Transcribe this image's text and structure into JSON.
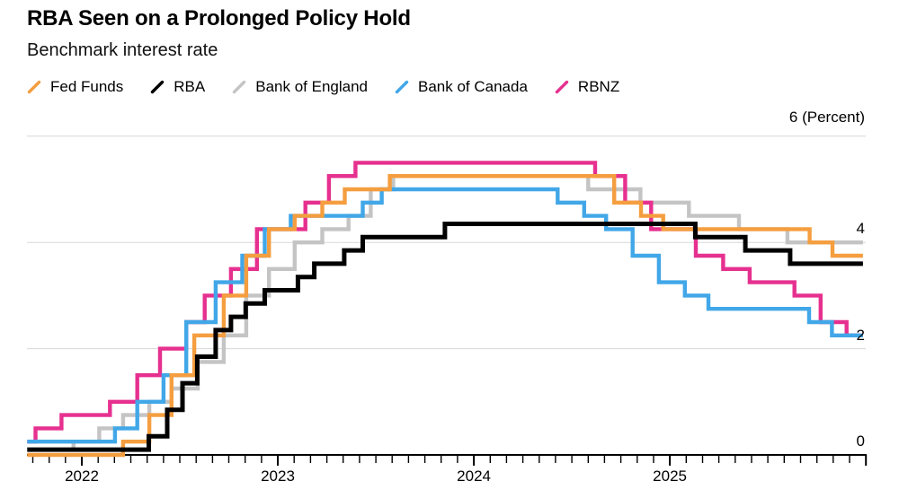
{
  "chart_data": {
    "type": "step-line",
    "title": "RBA Seen on a Prolonged Policy Hold",
    "subtitle": "Benchmark interest rate",
    "unit_top_label": "6 (Percent)",
    "background": "#ffffff",
    "gridline_color": "#d7d7d7",
    "axis_color": "#000000",
    "legend_position": "top",
    "yaxis": {
      "unit": "Percent",
      "ylim": [
        0,
        6
      ],
      "gridlines": [
        2,
        4,
        6
      ],
      "tick_labels": [
        "4",
        "2",
        "0"
      ]
    },
    "xaxis": {
      "start_date": "2021-09-21",
      "end_date": "2025-12-26",
      "tick_interval": "month",
      "years": [
        "2022",
        "2023",
        "2024",
        "2025"
      ]
    },
    "series": [
      {
        "id": "fed-funds",
        "name": "Fed Funds",
        "color": "#F59E3F",
        "z": 3,
        "line_width": 4.4,
        "points": [
          [
            "2021-09-21",
            0.0
          ],
          [
            "2022-03-17",
            0.25
          ],
          [
            "2022-05-05",
            0.75
          ],
          [
            "2022-06-16",
            1.5
          ],
          [
            "2022-07-28",
            2.25
          ],
          [
            "2022-09-22",
            3.0
          ],
          [
            "2022-11-03",
            3.75
          ],
          [
            "2022-12-15",
            4.25
          ],
          [
            "2023-02-02",
            4.5
          ],
          [
            "2023-03-23",
            4.75
          ],
          [
            "2023-05-04",
            5.0
          ],
          [
            "2023-07-27",
            5.25
          ],
          [
            "2024-09-19",
            4.75
          ],
          [
            "2024-11-08",
            4.5
          ],
          [
            "2024-12-19",
            4.25
          ],
          [
            "2025-09-18",
            4.0
          ],
          [
            "2025-10-30",
            3.75
          ]
        ]
      },
      {
        "id": "rba",
        "name": "RBA",
        "color": "#000000",
        "z": 4,
        "line_width": 5,
        "points": [
          [
            "2021-09-21",
            0.1
          ],
          [
            "2022-05-04",
            0.35
          ],
          [
            "2022-06-08",
            0.85
          ],
          [
            "2022-07-06",
            1.35
          ],
          [
            "2022-08-03",
            1.85
          ],
          [
            "2022-09-07",
            2.35
          ],
          [
            "2022-10-05",
            2.6
          ],
          [
            "2022-11-02",
            2.85
          ],
          [
            "2022-12-07",
            3.1
          ],
          [
            "2023-02-08",
            3.35
          ],
          [
            "2023-03-08",
            3.6
          ],
          [
            "2023-05-03",
            3.85
          ],
          [
            "2023-06-07",
            4.1
          ],
          [
            "2023-11-08",
            4.35
          ],
          [
            "2025-02-18",
            4.1
          ],
          [
            "2025-05-20",
            3.85
          ],
          [
            "2025-08-12",
            3.6
          ]
        ]
      },
      {
        "id": "bank-of-england",
        "name": "Bank of England",
        "color": "#C4C4C4",
        "z": 0,
        "line_width": 4.4,
        "points": [
          [
            "2021-09-21",
            0.1
          ],
          [
            "2021-12-16",
            0.25
          ],
          [
            "2022-02-03",
            0.5
          ],
          [
            "2022-03-17",
            0.75
          ],
          [
            "2022-05-05",
            1.0
          ],
          [
            "2022-06-16",
            1.25
          ],
          [
            "2022-08-04",
            1.75
          ],
          [
            "2022-09-22",
            2.25
          ],
          [
            "2022-11-03",
            3.0
          ],
          [
            "2022-12-15",
            3.5
          ],
          [
            "2023-02-02",
            4.0
          ],
          [
            "2023-03-23",
            4.25
          ],
          [
            "2023-05-11",
            4.5
          ],
          [
            "2023-06-22",
            5.0
          ],
          [
            "2023-08-03",
            5.25
          ],
          [
            "2024-08-01",
            5.0
          ],
          [
            "2024-11-07",
            4.75
          ],
          [
            "2025-02-06",
            4.5
          ],
          [
            "2025-05-08",
            4.25
          ],
          [
            "2025-08-07",
            4.0
          ]
        ]
      },
      {
        "id": "bank-of-canada",
        "name": "Bank of Canada",
        "color": "#41A7E8",
        "z": 2,
        "line_width": 4.4,
        "points": [
          [
            "2021-09-21",
            0.25
          ],
          [
            "2022-03-02",
            0.5
          ],
          [
            "2022-04-13",
            1.0
          ],
          [
            "2022-06-01",
            1.5
          ],
          [
            "2022-07-13",
            2.5
          ],
          [
            "2022-09-07",
            3.25
          ],
          [
            "2022-10-26",
            3.75
          ],
          [
            "2022-12-07",
            4.25
          ],
          [
            "2023-01-25",
            4.5
          ],
          [
            "2023-06-07",
            4.75
          ],
          [
            "2023-07-12",
            5.0
          ],
          [
            "2024-06-05",
            4.75
          ],
          [
            "2024-07-24",
            4.5
          ],
          [
            "2024-09-04",
            4.25
          ],
          [
            "2024-10-23",
            3.75
          ],
          [
            "2024-12-11",
            3.25
          ],
          [
            "2025-01-29",
            3.0
          ],
          [
            "2025-03-12",
            2.75
          ],
          [
            "2025-09-17",
            2.5
          ],
          [
            "2025-10-29",
            2.25
          ]
        ]
      },
      {
        "id": "rbnz",
        "name": "RBNZ",
        "color": "#E6308F",
        "z": 1,
        "line_width": 4.4,
        "points": [
          [
            "2021-09-21",
            0.25
          ],
          [
            "2021-10-06",
            0.5
          ],
          [
            "2021-11-24",
            0.75
          ],
          [
            "2022-02-23",
            1.0
          ],
          [
            "2022-04-13",
            1.5
          ],
          [
            "2022-05-25",
            2.0
          ],
          [
            "2022-07-13",
            2.5
          ],
          [
            "2022-08-17",
            3.0
          ],
          [
            "2022-10-05",
            3.5
          ],
          [
            "2022-11-23",
            4.25
          ],
          [
            "2023-02-22",
            4.75
          ],
          [
            "2023-04-05",
            5.25
          ],
          [
            "2023-05-24",
            5.5
          ],
          [
            "2024-08-14",
            5.25
          ],
          [
            "2024-10-09",
            4.75
          ],
          [
            "2024-11-27",
            4.25
          ],
          [
            "2025-02-19",
            3.75
          ],
          [
            "2025-04-09",
            3.5
          ],
          [
            "2025-05-28",
            3.25
          ],
          [
            "2025-08-20",
            3.0
          ],
          [
            "2025-10-08",
            2.5
          ],
          [
            "2025-11-26",
            2.25
          ]
        ]
      }
    ]
  }
}
